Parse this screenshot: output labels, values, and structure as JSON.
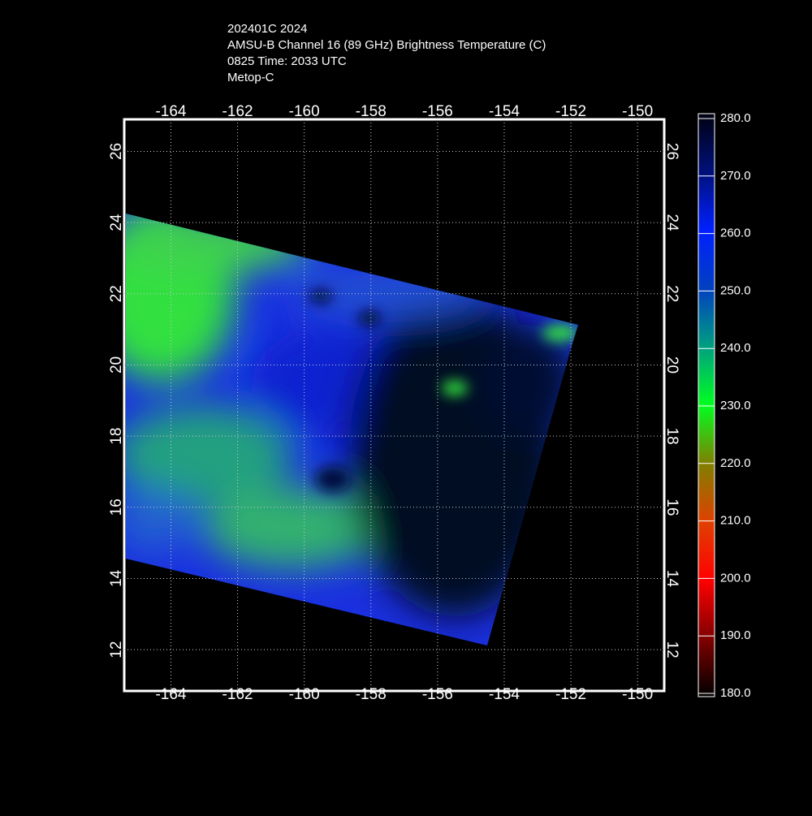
{
  "header": {
    "lines": [
      "202401C 2024",
      "AMSU-B Channel 16 (89 GHz) Brightness Temperature (C)",
      "0825 Time: 2033 UTC",
      "Metop-C"
    ]
  },
  "map": {
    "lon_range": [
      -165.4,
      -149.2
    ],
    "lat_range": [
      10.84,
      26.9
    ],
    "lon_ticks": [
      -164,
      -162,
      -160,
      -158,
      -156,
      -154,
      -152,
      -150
    ],
    "lat_ticks": [
      12,
      14,
      16,
      18,
      20,
      22,
      24,
      26
    ]
  },
  "colorbar": {
    "range": [
      180,
      280
    ],
    "ticks": [
      {
        "value": 280,
        "label": "280.0"
      },
      {
        "value": 270,
        "label": "270.0"
      },
      {
        "value": 260,
        "label": "260.0"
      },
      {
        "value": 250,
        "label": "250.0"
      },
      {
        "value": 240,
        "label": "240.0"
      },
      {
        "value": 230,
        "label": "230.0"
      },
      {
        "value": 220,
        "label": "220.0"
      },
      {
        "value": 210,
        "label": "210.0"
      },
      {
        "value": 200,
        "label": "200.0"
      },
      {
        "value": 190,
        "label": "190.0"
      },
      {
        "value": 180,
        "label": "180.0"
      }
    ]
  }
}
